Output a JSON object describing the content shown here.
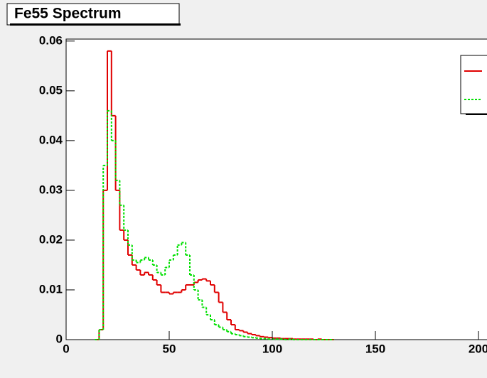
{
  "chart_data": {
    "type": "histogram",
    "title": "Fe55 Spectrum",
    "bins": [
      14,
      16,
      18,
      20,
      22,
      24,
      26,
      28,
      30,
      32,
      34,
      36,
      38,
      40,
      42,
      44,
      46,
      48,
      50,
      52,
      54,
      56,
      58,
      60,
      62,
      64,
      66,
      68,
      70,
      72,
      74,
      76,
      78,
      80,
      82,
      84,
      86,
      88,
      90,
      92,
      94,
      96,
      98,
      100,
      102,
      104,
      106,
      108,
      110,
      112,
      114,
      116,
      118,
      120,
      122,
      124,
      126,
      128,
      130
    ],
    "series": [
      {
        "color": "#e00000",
        "dash": "solid",
        "values": [
          0,
          0.002,
          0.03,
          0.058,
          0.045,
          0.03,
          0.022,
          0.02,
          0.017,
          0.015,
          0.014,
          0.013,
          0.0135,
          0.013,
          0.012,
          0.011,
          0.0095,
          0.0095,
          0.0092,
          0.0095,
          0.0095,
          0.01,
          0.011,
          0.011,
          0.0115,
          0.012,
          0.0122,
          0.0118,
          0.011,
          0.0095,
          0.0075,
          0.0055,
          0.004,
          0.003,
          0.002,
          0.0018,
          0.0015,
          0.0012,
          0.001,
          0.0008,
          0.0006,
          0.0005,
          0.0004,
          0.0003,
          0.0003,
          0.0002,
          0.0002,
          0.0002,
          0.0001,
          0.0001,
          0.0001,
          0.0001,
          0.0001,
          0,
          0.0001,
          0,
          0,
          0
        ]
      },
      {
        "color": "#00e000",
        "dash": "dotted",
        "values": [
          0,
          0.002,
          0.035,
          0.046,
          0.04,
          0.032,
          0.027,
          0.022,
          0.019,
          0.016,
          0.0155,
          0.016,
          0.0165,
          0.016,
          0.015,
          0.0135,
          0.013,
          0.0145,
          0.016,
          0.017,
          0.019,
          0.0195,
          0.017,
          0.013,
          0.01,
          0.008,
          0.0065,
          0.005,
          0.004,
          0.003,
          0.0025,
          0.002,
          0.0016,
          0.0012,
          0.001,
          0.0008,
          0.0006,
          0.0005,
          0.0004,
          0.0003,
          0.0002,
          0.0002,
          0.0001,
          0.0001,
          0.0001,
          0.0001,
          0,
          0.0001,
          0,
          0,
          0,
          0,
          0,
          0,
          0,
          0,
          0,
          0
        ]
      }
    ],
    "xlim": [
      0,
      205
    ],
    "xticks": [
      0,
      50,
      100,
      150,
      200
    ],
    "ylim": [
      0,
      0.0604
    ],
    "yticks": [
      0,
      0.01,
      0.02,
      0.03,
      0.04,
      0.05,
      0.06
    ],
    "legend": "top-right"
  }
}
